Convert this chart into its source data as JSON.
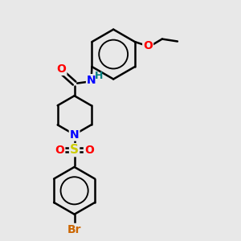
{
  "background_color": "#e8e8e8",
  "bond_color": "#000000",
  "atom_colors": {
    "O": "#ff0000",
    "N": "#0000ff",
    "S": "#cccc00",
    "Br": "#cc6600",
    "H": "#008080",
    "C": "#000000"
  },
  "font_size": 9,
  "figsize": [
    3.0,
    3.0
  ],
  "dpi": 100,
  "xlim": [
    0,
    10
  ],
  "ylim": [
    0,
    10
  ]
}
